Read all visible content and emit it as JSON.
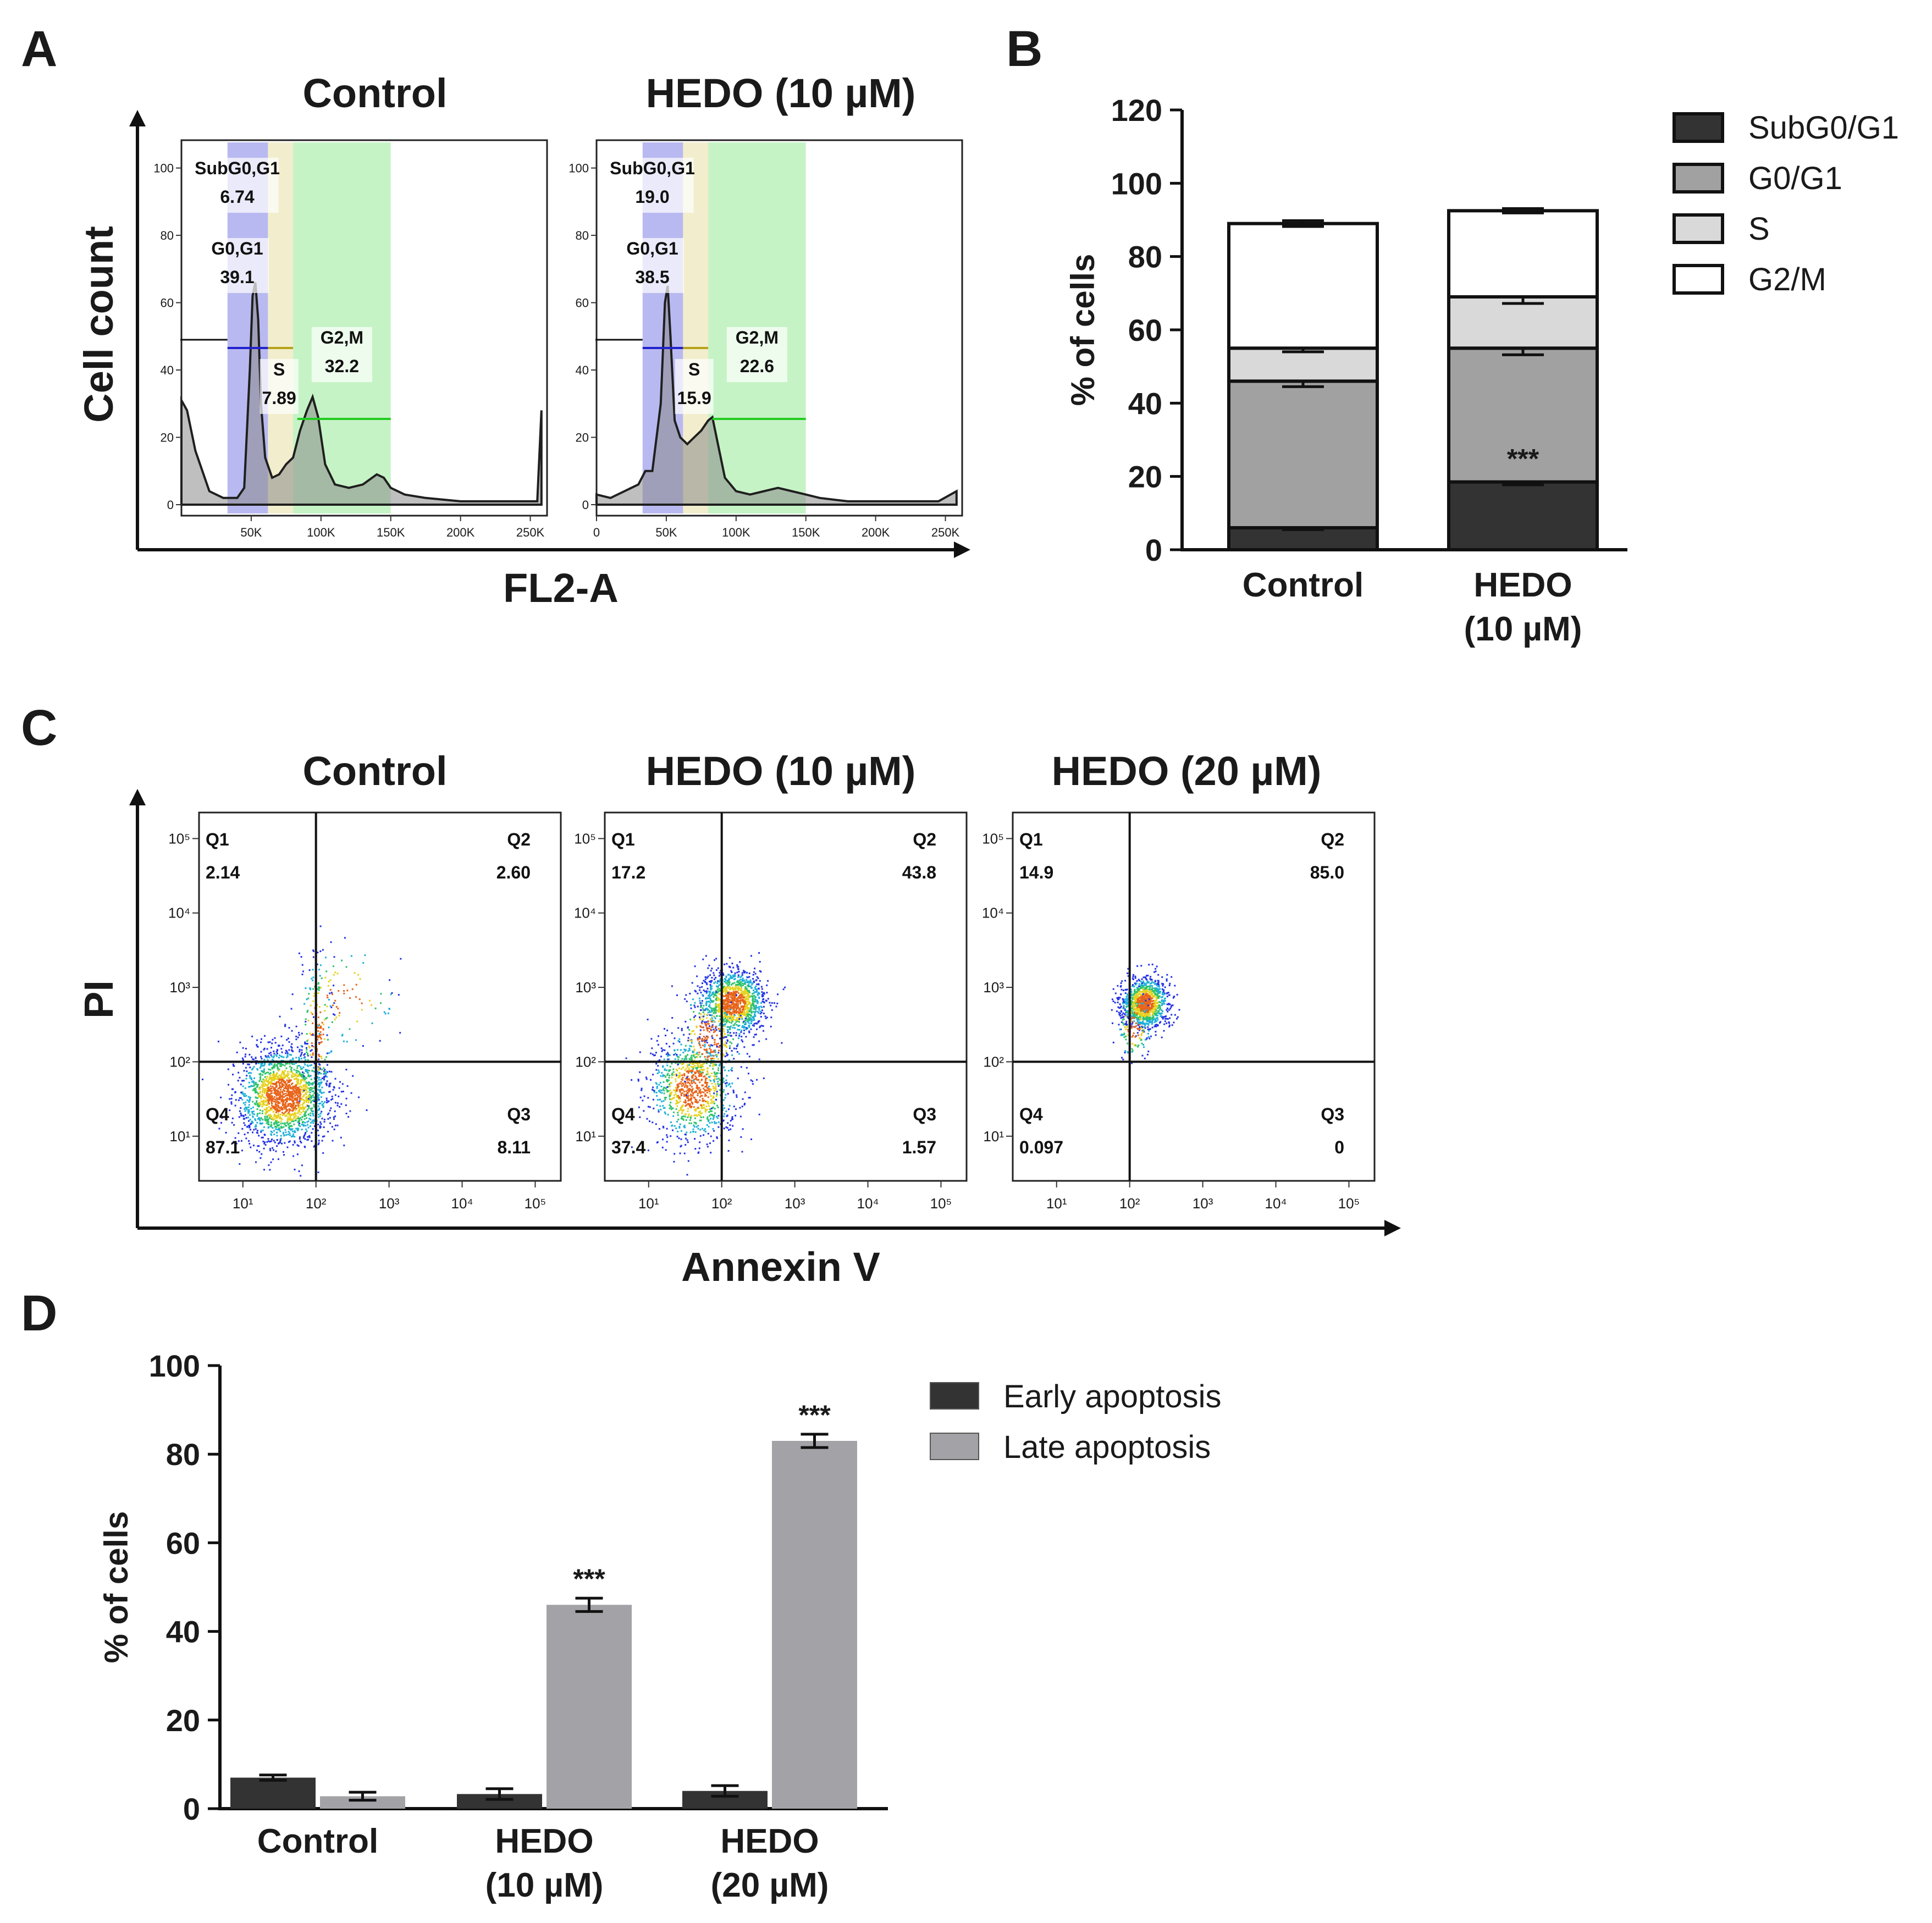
{
  "colors": {
    "subg0g1": "#333333",
    "g0g1": "#a1a1a1",
    "s": "#d9d9d9",
    "g2m": "#ffffff",
    "early": "#333333",
    "late": "#a3a3a7",
    "histo_fill": "#8a8a8a",
    "gate_subg0": "#7f7fe6",
    "gate_g0g1": "#c8c8f2",
    "gate_s": "#ece7b8",
    "gate_g2m": "#b8f0b8"
  },
  "panel_a": {
    "letter": "A",
    "ylabel": "Cell count",
    "xlabel": "FL2-A",
    "y_ticks": [
      "0",
      "20",
      "40",
      "60",
      "80",
      "100"
    ],
    "x_ticks_left": [
      "50K",
      "100K",
      "150K",
      "200K",
      "250K"
    ],
    "x_ticks_right": [
      "0",
      "50K",
      "100K",
      "150K",
      "200K",
      "250K"
    ],
    "plots": [
      {
        "title": "Control",
        "gates": [
          {
            "label": "SubG0,G1",
            "value": "6.74"
          },
          {
            "label": "G0,G1",
            "value": "39.1"
          },
          {
            "label": "S",
            "value": "7.89"
          },
          {
            "label": "G2,M",
            "value": "32.2"
          }
        ],
        "histogram": [
          [
            0,
            31
          ],
          [
            4,
            28
          ],
          [
            10,
            16
          ],
          [
            20,
            4
          ],
          [
            30,
            2
          ],
          [
            40,
            2
          ],
          [
            45,
            5
          ],
          [
            49,
            40
          ],
          [
            51,
            62
          ],
          [
            53,
            66
          ],
          [
            55,
            55
          ],
          [
            57,
            30
          ],
          [
            60,
            14
          ],
          [
            65,
            8
          ],
          [
            70,
            9
          ],
          [
            75,
            12
          ],
          [
            80,
            14
          ],
          [
            85,
            22
          ],
          [
            90,
            28
          ],
          [
            94,
            32
          ],
          [
            98,
            26
          ],
          [
            103,
            12
          ],
          [
            110,
            6
          ],
          [
            120,
            5
          ],
          [
            130,
            6
          ],
          [
            140,
            9
          ],
          [
            145,
            8
          ],
          [
            150,
            5
          ],
          [
            160,
            3
          ],
          [
            175,
            2
          ],
          [
            200,
            1
          ],
          [
            220,
            1
          ],
          [
            255,
            1
          ],
          [
            258,
            28
          ]
        ]
      },
      {
        "title": "HEDO (10 µM)",
        "gates": [
          {
            "label": "SubG0,G1",
            "value": "19.0"
          },
          {
            "label": "G0,G1",
            "value": "38.5"
          },
          {
            "label": "S",
            "value": "15.9"
          },
          {
            "label": "G2,M",
            "value": "22.6"
          }
        ],
        "histogram": [
          [
            0,
            3
          ],
          [
            10,
            2
          ],
          [
            20,
            4
          ],
          [
            30,
            6
          ],
          [
            35,
            10
          ],
          [
            40,
            10
          ],
          [
            46,
            30
          ],
          [
            49,
            60
          ],
          [
            51,
            65
          ],
          [
            53,
            50
          ],
          [
            56,
            25
          ],
          [
            60,
            20
          ],
          [
            65,
            18
          ],
          [
            70,
            20
          ],
          [
            75,
            22
          ],
          [
            80,
            25
          ],
          [
            83,
            26
          ],
          [
            87,
            18
          ],
          [
            92,
            8
          ],
          [
            100,
            4
          ],
          [
            110,
            3
          ],
          [
            120,
            4
          ],
          [
            130,
            5
          ],
          [
            140,
            4
          ],
          [
            150,
            3
          ],
          [
            160,
            2
          ],
          [
            180,
            1
          ],
          [
            210,
            1
          ],
          [
            245,
            1
          ],
          [
            258,
            4
          ]
        ]
      }
    ]
  },
  "panel_b": {
    "letter": "B",
    "chart_data": {
      "type": "bar",
      "stacked": true,
      "categories": [
        "Control",
        "HEDO\n(10 µM)"
      ],
      "category_labels": [
        [
          "Control"
        ],
        [
          "HEDO",
          "(10 µM)"
        ]
      ],
      "series": [
        {
          "name": "SubG0/G1",
          "values": [
            6.0,
            18.5
          ],
          "errors": [
            0.5,
            0.8
          ]
        },
        {
          "name": "G0/G1",
          "values": [
            40.0,
            36.5
          ],
          "errors": [
            1.5,
            1.8
          ]
        },
        {
          "name": "S",
          "values": [
            9.0,
            14.0
          ],
          "errors": [
            1.0,
            1.8
          ]
        },
        {
          "name": "G2/M",
          "values": [
            34.0,
            23.5
          ],
          "errors": [
            0.8,
            0.6
          ]
        }
      ],
      "ylabel": "% of cells",
      "ylim": [
        0,
        120
      ],
      "yticks": [
        "0",
        "20",
        "40",
        "60",
        "80",
        "100",
        "120"
      ],
      "annotations": [
        {
          "category": 1,
          "text": "***"
        }
      ],
      "legend": "right"
    }
  },
  "panel_c": {
    "letter": "C",
    "ylabel": "PI",
    "xlabel": "Annexin V",
    "plots": [
      {
        "title": "Control",
        "quadrants": {
          "Q1": "2.14",
          "Q2": "2.60",
          "Q3": "8.11",
          "Q4": "87.1"
        },
        "clusters": [
          {
            "cx": 1.55,
            "cy": 1.55,
            "sx": 0.32,
            "sy": 0.32,
            "n": 1900
          },
          {
            "cx": 2.0,
            "cy": 2.4,
            "sx": 0.12,
            "sy": 0.5,
            "n": 180
          },
          {
            "cx": 2.4,
            "cy": 2.9,
            "sx": 0.35,
            "sy": 0.35,
            "n": 90
          }
        ]
      },
      {
        "title": "HEDO (10 µM)",
        "quadrants": {
          "Q1": "17.2",
          "Q2": "43.8",
          "Q3": "1.57",
          "Q4": "37.4"
        },
        "clusters": [
          {
            "cx": 1.6,
            "cy": 1.65,
            "sx": 0.3,
            "sy": 0.35,
            "n": 1000
          },
          {
            "cx": 2.15,
            "cy": 2.8,
            "sx": 0.22,
            "sy": 0.22,
            "n": 1200
          },
          {
            "cx": 1.8,
            "cy": 2.3,
            "sx": 0.25,
            "sy": 0.35,
            "n": 300
          }
        ]
      },
      {
        "title": "HEDO (20 µM)",
        "quadrants": {
          "Q1": "14.9",
          "Q2": "85.0",
          "Q3": "0",
          "Q4": "0.097"
        },
        "clusters": [
          {
            "cx": 2.2,
            "cy": 2.8,
            "sx": 0.16,
            "sy": 0.17,
            "n": 1100
          },
          {
            "cx": 2.05,
            "cy": 2.5,
            "sx": 0.12,
            "sy": 0.25,
            "n": 150
          }
        ]
      }
    ],
    "x_ticks": [
      "10¹",
      "10²",
      "10³",
      "10⁴",
      "10⁵"
    ],
    "y_ticks": [
      "10¹",
      "10²",
      "10³",
      "10⁴",
      "10⁵"
    ]
  },
  "panel_d": {
    "letter": "D",
    "chart_data": {
      "type": "bar",
      "grouped": true,
      "categories": [
        "Control",
        "HEDO\n(10 µM)",
        "HEDO\n(20 µM)"
      ],
      "category_labels": [
        [
          "Control"
        ],
        [
          "HEDO",
          "(10 µM)"
        ],
        [
          "HEDO",
          "(20 µM)"
        ]
      ],
      "series": [
        {
          "name": "Early apoptosis",
          "values": [
            7.0,
            3.3,
            4.0
          ],
          "errors": [
            0.6,
            1.2,
            1.2
          ]
        },
        {
          "name": "Late apoptosis",
          "values": [
            2.8,
            46.0,
            83.0
          ],
          "errors": [
            0.9,
            1.5,
            1.5
          ]
        }
      ],
      "ylabel": "% of cells",
      "ylim": [
        0,
        100
      ],
      "yticks": [
        "0",
        "20",
        "40",
        "60",
        "80",
        "100"
      ],
      "annotations": [
        {
          "category": 1,
          "series": 1,
          "text": "***"
        },
        {
          "category": 2,
          "series": 1,
          "text": "***"
        }
      ],
      "legend": "top-right"
    }
  }
}
